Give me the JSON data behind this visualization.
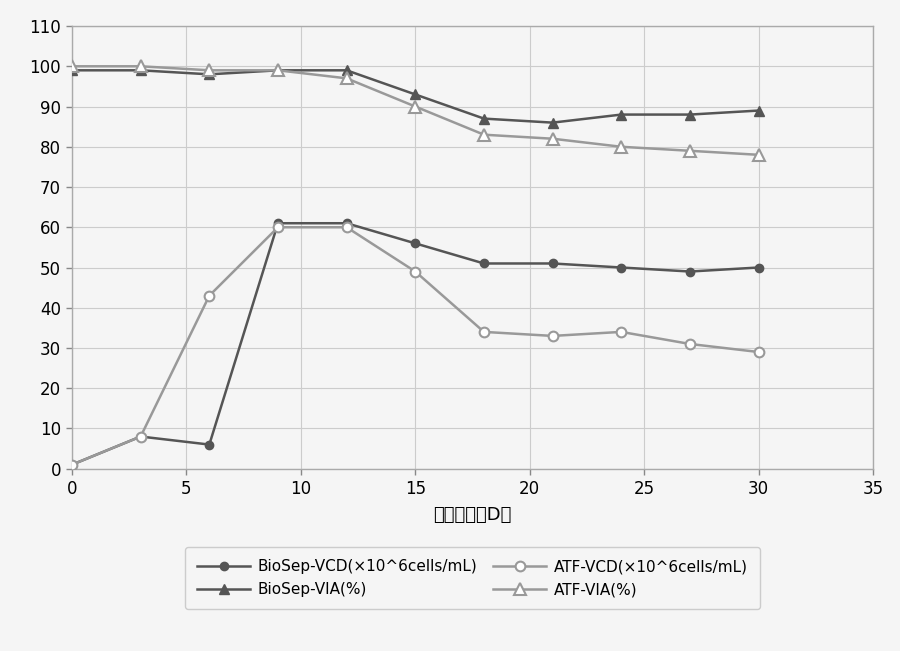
{
  "biosep_vcd_x": [
    0,
    3,
    6,
    9,
    12,
    15,
    18,
    21,
    24,
    27,
    30
  ],
  "biosep_vcd_y": [
    1,
    8,
    6,
    61,
    61,
    56,
    51,
    51,
    50,
    49,
    50
  ],
  "biosep_via_x": [
    0,
    3,
    6,
    9,
    12,
    15,
    18,
    21,
    24,
    27,
    30
  ],
  "biosep_via_y": [
    99,
    99,
    98,
    99,
    99,
    93,
    87,
    86,
    88,
    88,
    89
  ],
  "atf_vcd_x": [
    0,
    3,
    6,
    9,
    12,
    15,
    18,
    21,
    24,
    27,
    30
  ],
  "atf_vcd_y": [
    1,
    8,
    43,
    60,
    60,
    49,
    34,
    33,
    34,
    31,
    29
  ],
  "atf_via_x": [
    0,
    3,
    6,
    9,
    12,
    15,
    18,
    21,
    24,
    27,
    30
  ],
  "atf_via_y": [
    100,
    100,
    99,
    99,
    97,
    90,
    83,
    82,
    80,
    79,
    78
  ],
  "biosep_vcd_color": "#555555",
  "biosep_via_color": "#555555",
  "atf_vcd_color": "#999999",
  "atf_via_color": "#999999",
  "xlabel": "培养天数（D）",
  "xlim": [
    0,
    35
  ],
  "ylim": [
    0,
    110
  ],
  "xticks": [
    0,
    5,
    10,
    15,
    20,
    25,
    30,
    35
  ],
  "yticks": [
    0,
    10,
    20,
    30,
    40,
    50,
    60,
    70,
    80,
    90,
    100,
    110
  ],
  "legend_labels": [
    "BioSep-VCD(×10^6cells/mL)",
    "BioSep-VIA(%)",
    "ATF-VCD(×10^6cells/mL)",
    "ATF-VIA(%)"
  ],
  "background_color": "#f5f5f5",
  "grid_color": "#cccccc",
  "fig_width": 9.0,
  "fig_height": 6.51,
  "dpi": 100
}
